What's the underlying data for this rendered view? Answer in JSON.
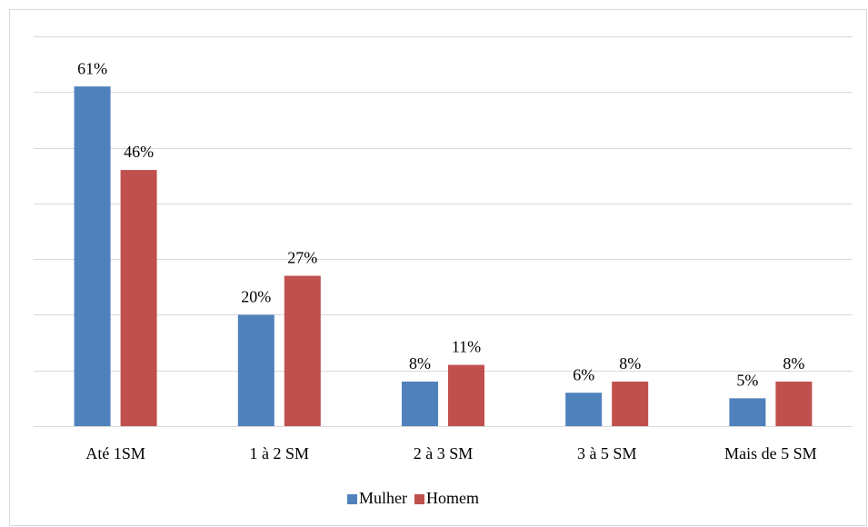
{
  "chart_data": {
    "type": "bar",
    "categories": [
      "Até 1SM",
      "1 à 2 SM",
      "2 à 3 SM",
      "3 à 5 SM",
      "Mais de 5 SM"
    ],
    "series": [
      {
        "name": "Mulher",
        "color": "#4f81bd",
        "values": [
          61,
          20,
          8,
          6,
          5
        ],
        "value_labels": [
          "61%",
          "20%",
          "8%",
          "6%",
          "5%"
        ]
      },
      {
        "name": "Homem",
        "color": "#c0504d",
        "values": [
          46,
          27,
          11,
          8,
          8
        ],
        "value_labels": [
          "46%",
          "27%",
          "11%",
          "8%",
          "8%"
        ]
      }
    ],
    "ylim": [
      0,
      70
    ],
    "yticks": [
      0,
      10,
      20,
      30,
      40,
      50,
      60,
      70
    ],
    "grid": true,
    "legend": "bottom"
  }
}
